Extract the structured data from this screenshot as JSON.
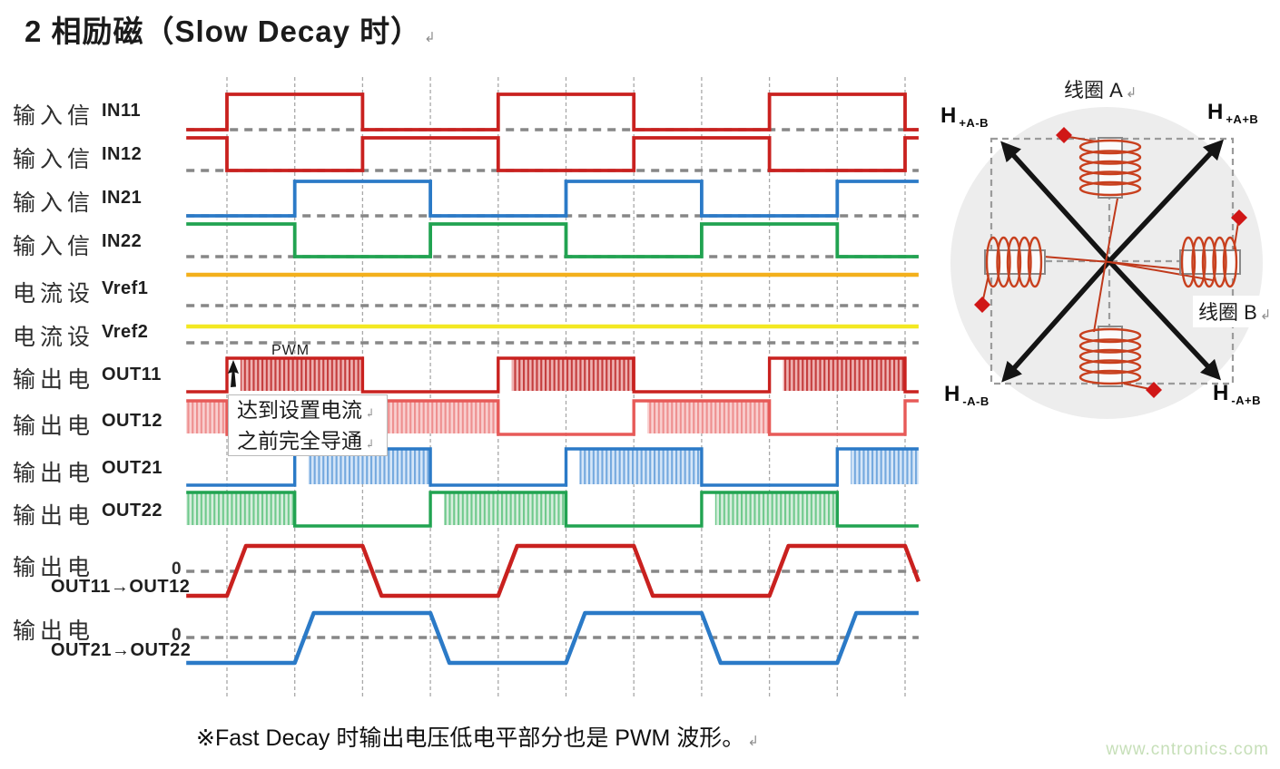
{
  "title": "2 相励磁（Slow Decay 时）",
  "return_mark": "↲",
  "footnote": "※Fast Decay 时输出电压低电平部分也是 PWM 波形。",
  "watermark": "www.cntronics.com",
  "pwm_label": "PWM",
  "annotation_box": {
    "line1": "达到设置电流",
    "line2": "之前完全导通"
  },
  "rows": [
    {
      "group": "输入信",
      "signal": "IN11"
    },
    {
      "group": "输入信",
      "signal": "IN12"
    },
    {
      "group": "输入信",
      "signal": "IN21"
    },
    {
      "group": "输入信",
      "signal": "IN22"
    },
    {
      "group": "电流设",
      "signal": "Vref1"
    },
    {
      "group": "电流设",
      "signal": "Vref2"
    },
    {
      "group": "输出电",
      "signal": "OUT11"
    },
    {
      "group": "输出电",
      "signal": "OUT12"
    },
    {
      "group": "输出电",
      "signal": "OUT21"
    },
    {
      "group": "输出电",
      "signal": "OUT22"
    },
    {
      "group": "输出电",
      "signal": "OUT11→OUT12",
      "zero": "0"
    },
    {
      "group": "输出电",
      "signal": "OUT21→OUT22",
      "zero": "0"
    }
  ],
  "coil_diagram": {
    "coil_a_label": "线圈 A",
    "coil_b_label": "线圈 B",
    "corners": [
      {
        "pos": "top-left",
        "h": "H",
        "sub": "+A-B"
      },
      {
        "pos": "top-right",
        "h": "H",
        "sub": "+A+B"
      },
      {
        "pos": "bottom-left",
        "h": "H",
        "sub": "-A-B"
      },
      {
        "pos": "bottom-right",
        "h": "H",
        "sub": "-A+B"
      }
    ]
  },
  "chart_data": {
    "type": "timing-diagram",
    "title": "2-phase excitation (Slow Decay) waveforms",
    "time_axis": {
      "unit": "half-step interval",
      "gridlines_t": [
        0,
        1,
        2,
        3,
        4,
        5,
        6,
        7,
        8,
        9,
        10
      ],
      "t_left": -0.6,
      "t_right": 10.2
    },
    "signals": [
      {
        "name": "IN11",
        "role": "input",
        "kind": "step",
        "color_key": "red",
        "high_intervals": [
          [
            0,
            2
          ],
          [
            4,
            6
          ],
          [
            8,
            10
          ]
        ]
      },
      {
        "name": "IN12",
        "role": "input",
        "kind": "step",
        "color_key": "red",
        "high_intervals": [
          [
            -0.6,
            0
          ],
          [
            2,
            4
          ],
          [
            6,
            8
          ],
          [
            10,
            10.2
          ]
        ]
      },
      {
        "name": "IN21",
        "role": "input",
        "kind": "step",
        "color_key": "blue",
        "high_intervals": [
          [
            1,
            3
          ],
          [
            5,
            7
          ],
          [
            9,
            10.2
          ]
        ]
      },
      {
        "name": "IN22",
        "role": "input",
        "kind": "step",
        "color_key": "green",
        "high_intervals": [
          [
            -0.6,
            1
          ],
          [
            3,
            5
          ],
          [
            7,
            9
          ]
        ]
      },
      {
        "name": "Vref1",
        "role": "current-setting",
        "kind": "constant",
        "color_key": "orange"
      },
      {
        "name": "Vref2",
        "role": "current-setting",
        "kind": "constant",
        "color_key": "yellow"
      },
      {
        "name": "OUT11",
        "role": "output-voltage",
        "kind": "pwm",
        "color_key": "red",
        "hatch_key": "red_hatch",
        "active_intervals": [
          [
            0,
            2
          ],
          [
            4,
            6
          ],
          [
            8,
            10
          ]
        ],
        "full_on_pulse_t": [
          0,
          4,
          8
        ]
      },
      {
        "name": "OUT12",
        "role": "output-voltage",
        "kind": "pwm",
        "color_key": "pink",
        "hatch_key": "pink_hatch",
        "active_intervals": [
          [
            -0.6,
            0
          ],
          [
            2,
            4
          ],
          [
            6,
            8
          ],
          [
            10,
            10.2
          ]
        ],
        "full_on_pulse_t": [
          2,
          6,
          10
        ]
      },
      {
        "name": "OUT21",
        "role": "output-voltage",
        "kind": "pwm",
        "color_key": "blue",
        "hatch_key": "blue_hatch",
        "active_intervals": [
          [
            1,
            3
          ],
          [
            5,
            7
          ],
          [
            9,
            10.2
          ]
        ],
        "full_on_pulse_t": [
          1,
          5,
          9
        ]
      },
      {
        "name": "OUT22",
        "role": "output-voltage",
        "kind": "pwm",
        "color_key": "green",
        "hatch_key": "green_hatch",
        "active_intervals": [
          [
            -0.6,
            1
          ],
          [
            3,
            5
          ],
          [
            7,
            9
          ]
        ],
        "full_on_pulse_t": [
          3,
          7
        ]
      },
      {
        "name": "OUT11→OUT12",
        "role": "coil-current",
        "kind": "trapezoid",
        "color_key": "red",
        "rise_t": [
          0,
          4,
          8
        ],
        "fall_t": [
          2,
          6,
          10
        ],
        "ramp_width": 0.28,
        "levels": [
          -1,
          1
        ],
        "zero_label": "0"
      },
      {
        "name": "OUT21→OUT22",
        "role": "coil-current",
        "kind": "trapezoid",
        "color_key": "blue",
        "rise_t": [
          1,
          5,
          9
        ],
        "fall_t": [
          3,
          7
        ],
        "ramp_width": 0.28,
        "levels": [
          -1,
          1
        ],
        "zero_label": "0"
      }
    ],
    "colors": {
      "red": "#c9211f",
      "pink": "#e75a58",
      "blue": "#2b7ac7",
      "green": "#21a351",
      "orange": "#f3b01c",
      "yellow": "#f3e821",
      "grid": "#a8a8a8",
      "baseline": "#878787",
      "hatches": {
        "red_hatch": {
          "bg": "#efb2b2",
          "stripe": "#c43d3d"
        },
        "pink_hatch": {
          "bg": "#f9cfcf",
          "stripe": "#ee8f8f"
        },
        "blue_hatch": {
          "bg": "#d5e6f8",
          "stripe": "#73a8de"
        },
        "green_hatch": {
          "bg": "#d6eedd",
          "stripe": "#6fc98c"
        }
      }
    }
  }
}
